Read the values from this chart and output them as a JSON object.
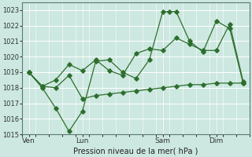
{
  "title": "Pression niveau de la mer( hPa )",
  "bg_color": "#cce8e0",
  "grid_color": "#ffffff",
  "line_color": "#2d6e2d",
  "ylim": [
    1015,
    1023.5
  ],
  "yticks": [
    1015,
    1016,
    1017,
    1018,
    1019,
    1020,
    1021,
    1022,
    1023
  ],
  "xtick_labels": [
    "Ven",
    "Lun",
    "Sam",
    "Dim"
  ],
  "xtick_positions": [
    0.5,
    4.5,
    10.5,
    14.5
  ],
  "vline_positions": [
    0.5,
    4.5,
    10.5,
    14.5
  ],
  "xlim": [
    0,
    17
  ],
  "series1_x": [
    0.5,
    1.5,
    2.5,
    3.5,
    4.5,
    5.5,
    6.5,
    7.5,
    8.5,
    9.5,
    10.5,
    11.0,
    11.5,
    12.5,
    13.5,
    14.5,
    15.5,
    16.5
  ],
  "series1_y": [
    1019.0,
    1018.0,
    1016.7,
    1015.2,
    1016.5,
    1019.7,
    1019.8,
    1019.0,
    1018.6,
    1019.8,
    1022.9,
    1022.9,
    1022.9,
    1021.0,
    1020.3,
    1022.3,
    1021.8,
    1018.3
  ],
  "series2_x": [
    0.5,
    1.5,
    2.5,
    3.5,
    4.5,
    5.5,
    6.5,
    7.5,
    8.5,
    9.5,
    10.5,
    11.5,
    12.5,
    13.5,
    14.5,
    15.5,
    16.5
  ],
  "series2_y": [
    1019.0,
    1018.1,
    1018.5,
    1019.5,
    1019.1,
    1019.8,
    1019.1,
    1018.8,
    1020.2,
    1020.5,
    1020.4,
    1021.2,
    1020.8,
    1020.4,
    1020.4,
    1022.1,
    1018.4
  ],
  "series3_x": [
    0.5,
    1.5,
    2.5,
    3.5,
    4.5,
    5.5,
    6.5,
    7.5,
    8.5,
    9.5,
    10.5,
    11.5,
    12.5,
    13.5,
    14.5,
    15.5,
    16.5
  ],
  "series3_y": [
    1019.0,
    1018.1,
    1018.0,
    1018.8,
    1017.3,
    1017.5,
    1017.6,
    1017.7,
    1017.8,
    1017.9,
    1018.0,
    1018.1,
    1018.2,
    1018.2,
    1018.3,
    1018.3,
    1018.3
  ]
}
